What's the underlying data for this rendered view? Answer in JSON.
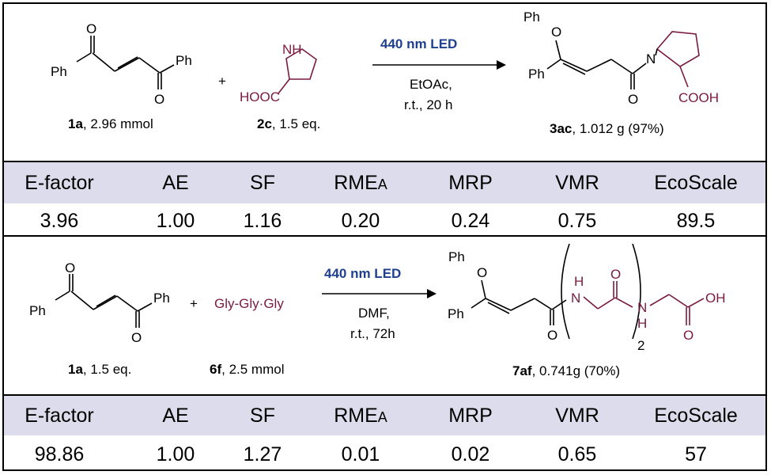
{
  "reaction1": {
    "reagent1_label": "1a",
    "reagent1_amount": ", 2.96 mmol",
    "plus": "+",
    "reagent2_label": "2c",
    "reagent2_amount": ", 1.5 eq.",
    "condition_light": "440 nm LED",
    "condition_solvent": "EtOAc,",
    "condition_time": "r.t., 20 h",
    "product_label": "3ac",
    "product_amount": ", 1.012 g (97%)",
    "atoms": {
      "O_top": "O",
      "Ph_left": "Ph",
      "Ph_right": "Ph",
      "O_bottom": "O",
      "NH": "NH",
      "HOOC": "HOOC",
      "PhO_Ph": "Ph",
      "PhO_O": "O",
      "prod_Ph": "Ph",
      "prod_O": "O",
      "prod_N": "N",
      "prod_COOH": "COOH"
    }
  },
  "metrics_headers": [
    "E-factor",
    "AE",
    "SF",
    "RME",
    "MRP",
    "VMR",
    "EcoScale"
  ],
  "rme_subscript": "A",
  "metrics1": [
    "3.96",
    "1.00",
    "1.16",
    "0.20",
    "0.24",
    "0.75",
    "89.5"
  ],
  "reaction2": {
    "reagent1_label": "1a",
    "reagent1_amount": ", 1.5 eq.",
    "plus": "+",
    "reagent2_text": "Gly-Gly·Gly",
    "reagent2_label": "6f",
    "reagent2_amount": ", 2.5 mmol",
    "condition_light": "440 nm LED",
    "condition_solvent": "DMF,",
    "condition_time": "r.t., 72h",
    "product_label": "7af",
    "product_amount": ", 0.741g (70%)",
    "atoms": {
      "O_top": "O",
      "Ph_left": "Ph",
      "Ph_right": "Ph",
      "O_bottom": "O",
      "PhO_Ph": "Ph",
      "PhO_O": "O",
      "prod_Ph": "Ph",
      "prod_O": "O",
      "H1": "H",
      "N1": "N",
      "O2": "O",
      "N2": "N",
      "H2": "H",
      "OH": "OH",
      "O3": "O",
      "sub2": "2"
    }
  },
  "metrics2": [
    "98.86",
    "1.00",
    "1.27",
    "0.01",
    "0.02",
    "0.65",
    "57"
  ],
  "colors": {
    "band": "#dcdcec",
    "led_text": "#1f3f8f",
    "amino_acid": "#7a1a40"
  }
}
